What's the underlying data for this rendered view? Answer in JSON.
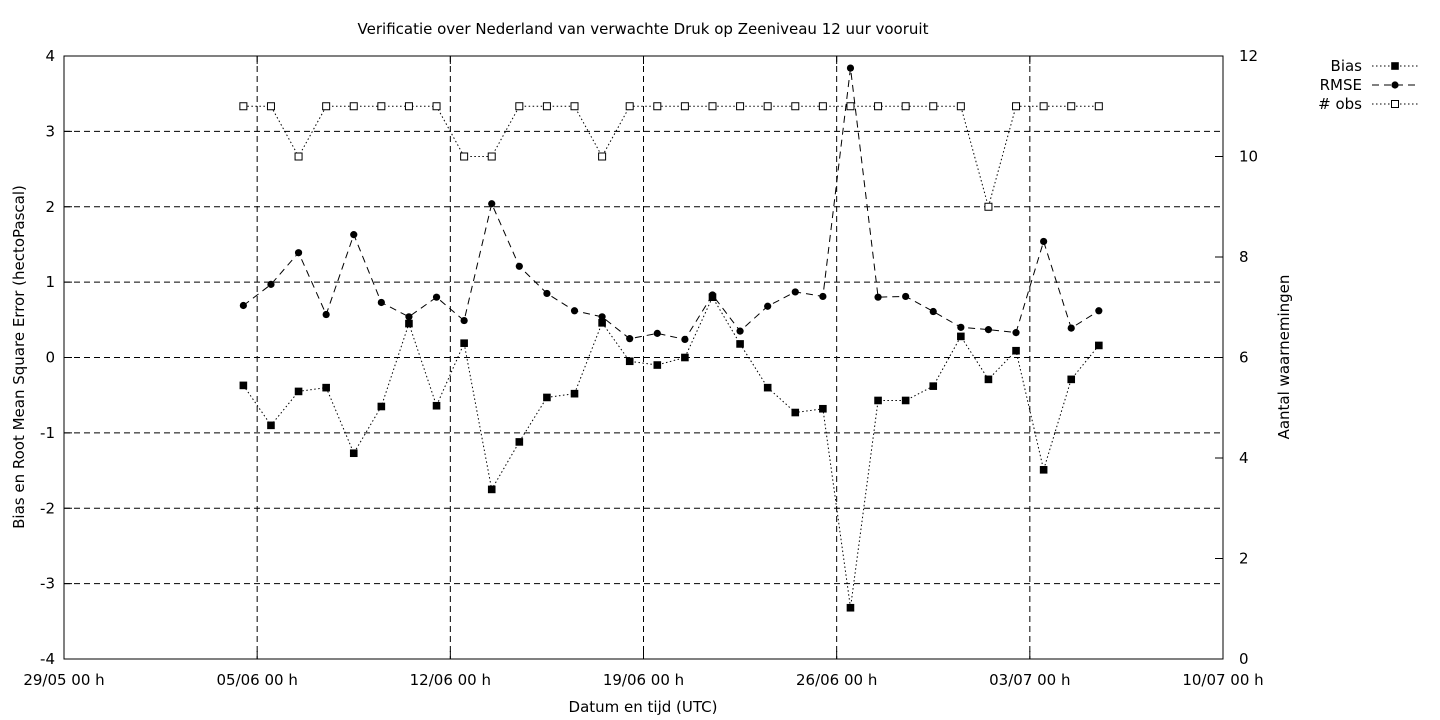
{
  "chart_data": {
    "type": "line",
    "title": "Verificatie over Nederland van verwachte Druk op Zeeniveau 12 uur vooruit",
    "xlabel": "Datum en tijd (UTC)",
    "ylabel": "Bias en Root Mean Square Error (hectoPascal)",
    "y2label": "Aantal waarnemingen",
    "x_tick_labels": [
      "29/05 00 h",
      "05/06 00 h",
      "12/06 00 h",
      "19/06 00 h",
      "26/06 00 h",
      "03/07 00 h",
      "10/07 00 h"
    ],
    "xlim": [
      "2023-05-29 00:00",
      "2023-07-10 00:00"
    ],
    "ylim": [
      -4,
      4
    ],
    "y_ticks": [
      -4,
      -3,
      -2,
      -1,
      0,
      1,
      2,
      3,
      4
    ],
    "y2lim": [
      0,
      12
    ],
    "y2_ticks": [
      0,
      2,
      4,
      6,
      8,
      10,
      12
    ],
    "grid": true,
    "legend_position": "top-right outside",
    "x": [
      "2023-06-04 12:00",
      "2023-06-05 12:00",
      "2023-06-06 12:00",
      "2023-06-07 12:00",
      "2023-06-08 12:00",
      "2023-06-09 12:00",
      "2023-06-10 12:00",
      "2023-06-11 12:00",
      "2023-06-12 12:00",
      "2023-06-13 12:00",
      "2023-06-14 12:00",
      "2023-06-15 12:00",
      "2023-06-16 12:00",
      "2023-06-17 12:00",
      "2023-06-18 12:00",
      "2023-06-19 12:00",
      "2023-06-20 12:00",
      "2023-06-21 12:00",
      "2023-06-22 12:00",
      "2023-06-23 12:00",
      "2023-06-24 12:00",
      "2023-06-25 12:00",
      "2023-06-26 12:00",
      "2023-06-27 12:00",
      "2023-06-28 12:00",
      "2023-06-29 12:00",
      "2023-06-30 12:00",
      "2023-07-01 12:00",
      "2023-07-02 12:00",
      "2023-07-03 12:00",
      "2023-07-04 12:00",
      "2023-07-05 12:00"
    ],
    "series": [
      {
        "name": "Bias",
        "axis": "left",
        "marker": "filled-square",
        "line": "dotted",
        "values": [
          -0.37,
          -0.9,
          -0.45,
          -0.4,
          -1.27,
          -0.65,
          0.45,
          -0.64,
          0.19,
          -1.75,
          -1.12,
          -0.53,
          -0.48,
          0.46,
          -0.05,
          -0.1,
          0.0,
          0.8,
          0.18,
          -0.4,
          -0.73,
          -0.68,
          -3.32,
          -0.57,
          -0.57,
          -0.38,
          0.28,
          -0.29,
          0.09,
          -1.49,
          -0.29,
          0.16
        ]
      },
      {
        "name": "RMSE",
        "axis": "left",
        "marker": "filled-circle",
        "line": "dashed",
        "values": [
          0.69,
          0.97,
          1.39,
          0.57,
          1.63,
          0.73,
          0.54,
          0.8,
          0.49,
          2.04,
          1.21,
          0.85,
          0.62,
          0.54,
          0.25,
          0.32,
          0.24,
          0.83,
          0.35,
          0.68,
          0.87,
          0.81,
          3.84,
          0.8,
          0.81,
          0.61,
          0.4,
          0.37,
          0.33,
          1.54,
          0.39,
          0.62
        ]
      },
      {
        "name": "# obs",
        "axis": "right",
        "marker": "open-square",
        "line": "dotted",
        "values": [
          11,
          11,
          10,
          11,
          11,
          11,
          11,
          11,
          10,
          10,
          11,
          11,
          11,
          10,
          11,
          11,
          11,
          11,
          11,
          11,
          11,
          11,
          11,
          11,
          11,
          11,
          11,
          9,
          11,
          11,
          11,
          11
        ]
      }
    ]
  }
}
